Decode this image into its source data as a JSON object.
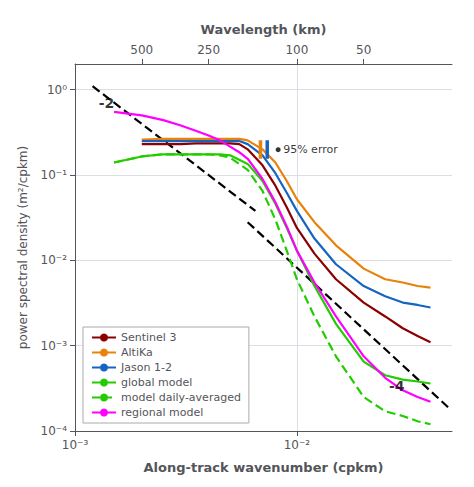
{
  "chart_data": {
    "type": "line",
    "log": true,
    "grid": true,
    "legend": "lower left",
    "xlabel": "Along-track wavenumber (cpkm)",
    "ylabel": "power spectral density (m²/cpkm)",
    "x2label": "Wavelength (km)",
    "xlim": [
      0.001,
      0.05
    ],
    "xticks": [
      {
        "value": 0.001,
        "label": "10⁻³"
      },
      {
        "value": 0.01,
        "label": "10⁻²"
      }
    ],
    "x2lim": [
      0.001,
      0.05
    ],
    "x2ticks": [
      {
        "value": 0.002,
        "label": "500"
      },
      {
        "value": 0.004,
        "label": "250"
      },
      {
        "value": 0.01,
        "label": "100"
      },
      {
        "value": 0.02,
        "label": "50"
      }
    ],
    "ylim": [
      0.0001,
      2.0
    ],
    "yticks": [
      {
        "value": 0.0001,
        "label": "10⁻⁴"
      },
      {
        "value": 0.001,
        "label": "10⁻³"
      },
      {
        "value": 0.01,
        "label": "10⁻²"
      },
      {
        "value": 0.1,
        "label": "10⁻¹"
      },
      {
        "value": 1,
        "label": "10⁰"
      }
    ],
    "series": [
      {
        "type": "line",
        "line_style": "dashed",
        "color": "black",
        "x": [
          0.0012,
          0.0065
        ],
        "values": [
          1.1,
          0.038
        ],
        "annotation": {
          "text": "-2",
          "x": 0.00128,
          "y": 0.58
        }
      },
      {
        "type": "line",
        "line_style": "dashed",
        "color": "black",
        "x": [
          0.006,
          0.048
        ],
        "values": [
          0.028,
          0.00019
        ],
        "annotation": {
          "text": "-4",
          "x": 0.026,
          "y": 0.00028
        }
      },
      {
        "name": "Sentinel 3",
        "color": "#8B0000",
        "line_style": "solid",
        "x": [
          0.002,
          0.0025,
          0.003,
          0.0035,
          0.004,
          0.0045,
          0.005,
          0.0055,
          0.006,
          0.007,
          0.008,
          0.009,
          0.01,
          0.012,
          0.015,
          0.02,
          0.025,
          0.03,
          0.035,
          0.04
        ],
        "values": [
          0.23,
          0.23,
          0.23,
          0.235,
          0.235,
          0.235,
          0.235,
          0.23,
          0.2,
          0.13,
          0.075,
          0.042,
          0.024,
          0.012,
          0.006,
          0.0032,
          0.0022,
          0.0016,
          0.0013,
          0.0011
        ]
      },
      {
        "name": "AltiKa",
        "color": "#E8820A",
        "line_style": "solid",
        "x": [
          0.002,
          0.0025,
          0.003,
          0.0035,
          0.004,
          0.0045,
          0.005,
          0.0055,
          0.006,
          0.007,
          0.008,
          0.009,
          0.01,
          0.012,
          0.015,
          0.02,
          0.025,
          0.03,
          0.035,
          0.04
        ],
        "values": [
          0.26,
          0.265,
          0.265,
          0.265,
          0.265,
          0.265,
          0.265,
          0.265,
          0.255,
          0.2,
          0.14,
          0.085,
          0.052,
          0.028,
          0.015,
          0.008,
          0.006,
          0.0055,
          0.005,
          0.0048
        ]
      },
      {
        "name": "Jason 1-2",
        "color": "#1565C0",
        "line_style": "solid",
        "x": [
          0.002,
          0.0025,
          0.003,
          0.0035,
          0.004,
          0.0045,
          0.005,
          0.0055,
          0.006,
          0.007,
          0.008,
          0.009,
          0.01,
          0.012,
          0.015,
          0.02,
          0.025,
          0.03,
          0.035,
          0.04
        ],
        "values": [
          0.25,
          0.25,
          0.25,
          0.25,
          0.25,
          0.25,
          0.25,
          0.25,
          0.23,
          0.17,
          0.105,
          0.062,
          0.038,
          0.018,
          0.009,
          0.005,
          0.0038,
          0.0032,
          0.003,
          0.0028
        ]
      },
      {
        "name": "global model",
        "color": "#22CC00",
        "line_style": "solid",
        "x": [
          0.0015,
          0.002,
          0.0025,
          0.003,
          0.0035,
          0.004,
          0.0045,
          0.005,
          0.006,
          0.007,
          0.008,
          0.009,
          0.01,
          0.012,
          0.015,
          0.02,
          0.025,
          0.03,
          0.035,
          0.04
        ],
        "values": [
          0.14,
          0.165,
          0.175,
          0.175,
          0.175,
          0.175,
          0.175,
          0.17,
          0.135,
          0.085,
          0.046,
          0.024,
          0.013,
          0.005,
          0.0018,
          0.00065,
          0.00045,
          0.0004,
          0.00038,
          0.00036
        ]
      },
      {
        "name": "model daily-averaged",
        "color": "#22CC00",
        "line_style": "dashed",
        "x": [
          0.0015,
          0.002,
          0.0025,
          0.003,
          0.0035,
          0.004,
          0.0045,
          0.005,
          0.006,
          0.007,
          0.008,
          0.009,
          0.01,
          0.012,
          0.015,
          0.02,
          0.025,
          0.03,
          0.035,
          0.04
        ],
        "values": [
          0.14,
          0.165,
          0.175,
          0.175,
          0.175,
          0.175,
          0.17,
          0.16,
          0.115,
          0.065,
          0.03,
          0.013,
          0.006,
          0.0022,
          0.00075,
          0.00025,
          0.00017,
          0.00015,
          0.00013,
          0.00012
        ]
      },
      {
        "name": "regional model",
        "color": "#FF00FF",
        "line_style": "solid",
        "x": [
          0.0015,
          0.002,
          0.0025,
          0.003,
          0.0035,
          0.004,
          0.0045,
          0.005,
          0.0055,
          0.006,
          0.007,
          0.008,
          0.009,
          0.01,
          0.012,
          0.015,
          0.02,
          0.025,
          0.03,
          0.035,
          0.04
        ],
        "values": [
          0.55,
          0.5,
          0.44,
          0.38,
          0.33,
          0.29,
          0.255,
          0.215,
          0.185,
          0.155,
          0.09,
          0.048,
          0.025,
          0.013,
          0.0055,
          0.0022,
          0.00075,
          0.00042,
          0.0003,
          0.00025,
          0.00022
        ]
      }
    ],
    "error_bars": [
      {
        "x": 0.00685,
        "low": 0.155,
        "high": 0.255,
        "color": "#E8820A"
      },
      {
        "x": 0.00735,
        "low": 0.155,
        "high": 0.255,
        "color": "#1565C0"
      }
    ],
    "points": [
      {
        "x": 0.008232,
        "y": 0.198,
        "color": "black"
      }
    ],
    "annotations": [
      {
        "text": "95% error",
        "x": 0.008673,
        "y": 0.198
      }
    ]
  }
}
